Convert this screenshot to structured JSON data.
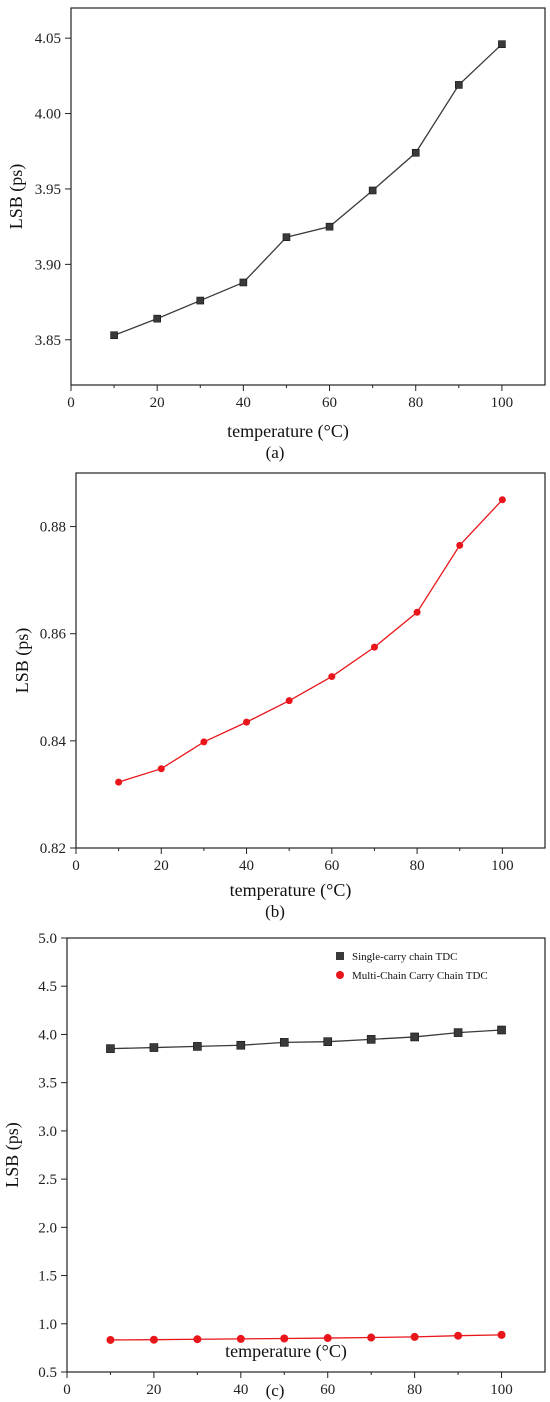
{
  "chart_data": [
    {
      "type": "line",
      "caption": "(a)",
      "xlabel": "temperature (°C)",
      "ylabel": "LSB (ps)",
      "xlim": [
        0,
        110
      ],
      "ylim": [
        3.82,
        4.07
      ],
      "xticks": [
        0,
        20,
        40,
        60,
        80,
        100
      ],
      "yticks": [
        3.85,
        3.9,
        3.95,
        4.0,
        4.05
      ],
      "ytick_format": 2,
      "grid": false,
      "series": [
        {
          "marker": "square",
          "color": "#3a3a3a",
          "x": [
            10,
            20,
            30,
            40,
            50,
            60,
            70,
            80,
            90,
            100
          ],
          "y": [
            3.853,
            3.864,
            3.876,
            3.888,
            3.918,
            3.925,
            3.949,
            3.974,
            4.019,
            4.046
          ]
        }
      ]
    },
    {
      "type": "line",
      "caption": "(b)",
      "xlabel": "temperature (°C)",
      "ylabel": "LSB (ps)",
      "xlim": [
        0,
        110
      ],
      "ylim": [
        0.82,
        0.89
      ],
      "xticks": [
        0,
        20,
        40,
        60,
        80,
        100
      ],
      "yticks": [
        0.82,
        0.84,
        0.86,
        0.88
      ],
      "ytick_format": 2,
      "grid": false,
      "series": [
        {
          "marker": "circle",
          "color": "#e8161b",
          "x": [
            10,
            20,
            30,
            40,
            50,
            60,
            70,
            80,
            90,
            100
          ],
          "y": [
            0.8323,
            0.8348,
            0.8398,
            0.8435,
            0.8475,
            0.852,
            0.8575,
            0.864,
            0.8765,
            0.885
          ]
        }
      ]
    },
    {
      "type": "line",
      "caption": "(c)",
      "xlabel": "temperature (°C)",
      "ylabel": "LSB (ps)",
      "xlim": [
        0,
        110
      ],
      "ylim": [
        0.5,
        5.0
      ],
      "xticks": [
        0,
        20,
        40,
        60,
        80,
        100
      ],
      "yticks": [
        0.5,
        1.0,
        1.5,
        2.0,
        2.5,
        3.0,
        3.5,
        4.0,
        4.5,
        5.0
      ],
      "ytick_format": 1,
      "grid": false,
      "legend": "top-right",
      "series": [
        {
          "name": "Single-carry chain TDC",
          "marker": "square",
          "color": "#3a3a3a",
          "x": [
            10,
            20,
            30,
            40,
            50,
            60,
            70,
            80,
            90,
            100
          ],
          "y": [
            3.853,
            3.864,
            3.876,
            3.888,
            3.918,
            3.925,
            3.949,
            3.974,
            4.019,
            4.046
          ]
        },
        {
          "name": "Multi-Chain Carry Chain TDC",
          "marker": "circle",
          "color": "#e8161b",
          "x": [
            10,
            20,
            30,
            40,
            50,
            60,
            70,
            80,
            90,
            100
          ],
          "y": [
            0.8323,
            0.8348,
            0.8398,
            0.8435,
            0.8475,
            0.852,
            0.8575,
            0.864,
            0.8765,
            0.885
          ]
        }
      ]
    }
  ]
}
